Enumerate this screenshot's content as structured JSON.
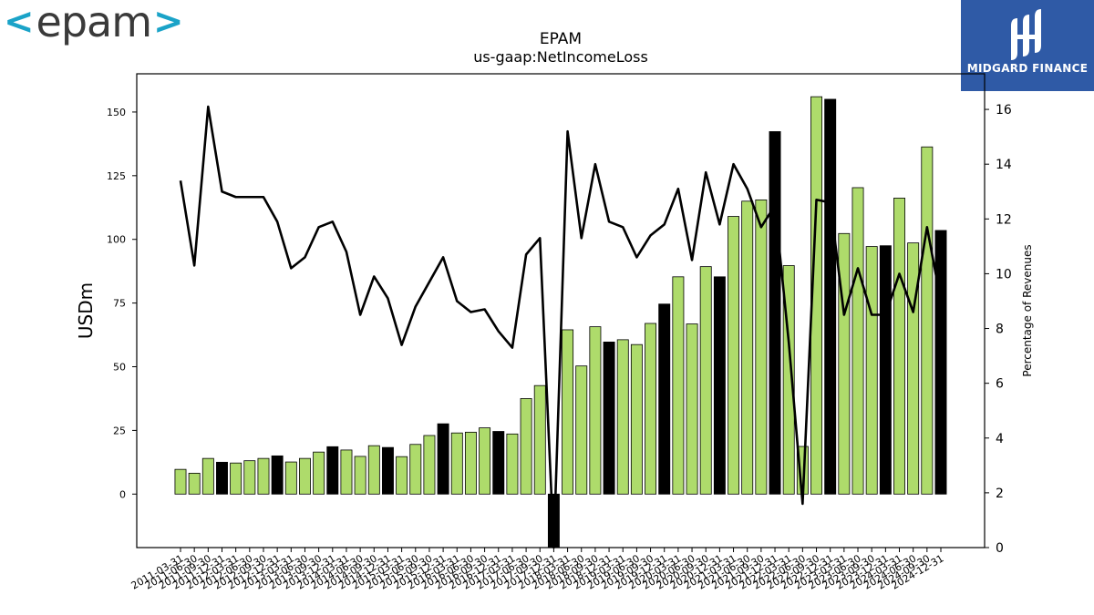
{
  "logos": {
    "left": {
      "chev_open": "<",
      "word": "epam",
      "chev_close": ">"
    },
    "right": {
      "word": "MIDGARD FINANCE",
      "icon": "midgard-mark-icon"
    }
  },
  "colors": {
    "bar_positive": "#aedb6b",
    "bar_highlight": "#000000",
    "line": "#000000",
    "logo_blue": "#2f5aa6",
    "epam_cyan": "#1aa3c8"
  },
  "chart_data": {
    "type": "bar",
    "title": "EPAM",
    "subtitle": "us-gaap:NetIncomeLoss",
    "ylabel": "USDm",
    "y2label": "Percentage of Revenues",
    "ylim": [
      -21,
      165
    ],
    "y2lim": [
      0,
      17.3
    ],
    "yticks": [
      0,
      25,
      50,
      75,
      100,
      125,
      150
    ],
    "y2ticks": [
      0,
      2,
      4,
      6,
      8,
      10,
      12,
      14,
      16
    ],
    "categories": [
      "2011-03-31",
      "2011-06-30",
      "2011-09-30",
      "2011-12-31",
      "2012-03-31",
      "2012-06-30",
      "2012-09-30",
      "2012-12-31",
      "2013-03-31",
      "2013-06-30",
      "2013-09-30",
      "2013-12-31",
      "2014-03-31",
      "2014-06-30",
      "2014-09-30",
      "2014-12-31",
      "2015-03-31",
      "2015-06-30",
      "2015-09-30",
      "2015-12-31",
      "2016-03-31",
      "2016-06-30",
      "2016-09-30",
      "2016-12-31",
      "2017-03-31",
      "2017-06-30",
      "2017-09-30",
      "2017-12-31",
      "2018-03-31",
      "2018-06-30",
      "2018-09-30",
      "2018-12-31",
      "2019-03-31",
      "2019-06-30",
      "2019-09-30",
      "2019-12-31",
      "2020-03-31",
      "2020-06-30",
      "2020-09-30",
      "2020-12-31",
      "2021-03-31",
      "2021-06-30",
      "2021-09-30",
      "2021-12-31",
      "2022-03-31",
      "2022-06-30",
      "2022-09-30",
      "2022-12-31",
      "2023-03-31",
      "2023-06-30",
      "2023-09-30",
      "2023-12-31",
      "2024-03-31",
      "2024-06-30",
      "2024-09-30",
      "2024-12-31"
    ],
    "xtick_labels": [
      "2011-03-31",
      "2011-06-30",
      "2011-09-30",
      "2011-12-31",
      "2012-03-31",
      "2012-06-30",
      "2012-09-30",
      "2012-12-31",
      "2013-03-31",
      "2013-06-30",
      "2013-09-30",
      "2013-12-31",
      "2014-03-31",
      "2014-06-30",
      "2014-09-30",
      "2014-12-31",
      "2015-03-31",
      "2015-06-30",
      "2015-09-30",
      "2015-12-31",
      "2016-03-31",
      "2016-06-30",
      "2016-09-30",
      "2016-12-31",
      "2017-03-31",
      "2017-06-30",
      "2017-09-30",
      "2017-12-31",
      "2018-03-31",
      "2018-06-30",
      "2018-09-30",
      "2018-12-31",
      "2019-03-31",
      "2019-06-30",
      "2019-09-30",
      "2019-12-31",
      "2020-03-31",
      "2020-06-30",
      "2020-09-30",
      "2020-12-31",
      "2021-03-31",
      "2021-06-30",
      "2021-09-30",
      "2021-12-31",
      "2022-03-31",
      "2022-06-30",
      "2022-09-30",
      "2022-12-31",
      "2023-03-31",
      "2023-06-30",
      "2023-09-30",
      "2023-12-31",
      "2024-03-31",
      "2024-06-30",
      "2024-09-30",
      "2024-12-31"
    ],
    "series": [
      {
        "kind": "bar",
        "axis": "left",
        "values": [
          9.7,
          8.2,
          14.0,
          12.5,
          12.2,
          13.1,
          14.0,
          15.0,
          12.6,
          14.0,
          16.5,
          18.6,
          17.3,
          14.8,
          19.0,
          18.3,
          14.7,
          19.5,
          23.0,
          27.6,
          24.0,
          24.3,
          26.0,
          24.6,
          23.6,
          37.5,
          42.6,
          -25.0,
          64.5,
          50.3,
          65.7,
          59.7,
          60.6,
          58.7,
          67.0,
          74.6,
          85.3,
          66.8,
          89.3,
          85.3,
          109.0,
          115.0,
          115.5,
          142.3,
          89.7,
          18.7,
          156.0,
          155.0,
          102.3,
          120.3,
          97.2,
          97.5,
          116.2,
          98.6,
          136.3,
          103.5
        ],
        "highlight": [
          false,
          false,
          false,
          true,
          false,
          false,
          false,
          true,
          false,
          false,
          false,
          true,
          false,
          false,
          false,
          true,
          false,
          false,
          false,
          true,
          false,
          false,
          false,
          true,
          false,
          false,
          false,
          true,
          false,
          false,
          false,
          true,
          false,
          false,
          false,
          true,
          false,
          false,
          false,
          true,
          false,
          false,
          false,
          true,
          false,
          false,
          false,
          true,
          false,
          false,
          false,
          true,
          false,
          false,
          false,
          true
        ]
      },
      {
        "kind": "line",
        "axis": "right",
        "values": [
          13.4,
          10.3,
          16.1,
          13.0,
          12.8,
          12.8,
          12.8,
          11.9,
          10.2,
          10.6,
          11.7,
          11.9,
          10.8,
          8.5,
          9.9,
          9.1,
          7.4,
          8.8,
          9.7,
          10.6,
          9.0,
          8.6,
          8.7,
          7.9,
          7.3,
          10.7,
          11.3,
          -1.0,
          15.2,
          11.3,
          14.0,
          11.9,
          11.7,
          10.6,
          11.4,
          11.8,
          13.1,
          10.5,
          13.7,
          11.8,
          14.0,
          13.1,
          11.7,
          12.5,
          7.5,
          1.6,
          12.7,
          12.6,
          8.5,
          10.2,
          8.5,
          8.5,
          10.0,
          8.6,
          11.7,
          9.0
        ]
      }
    ]
  }
}
